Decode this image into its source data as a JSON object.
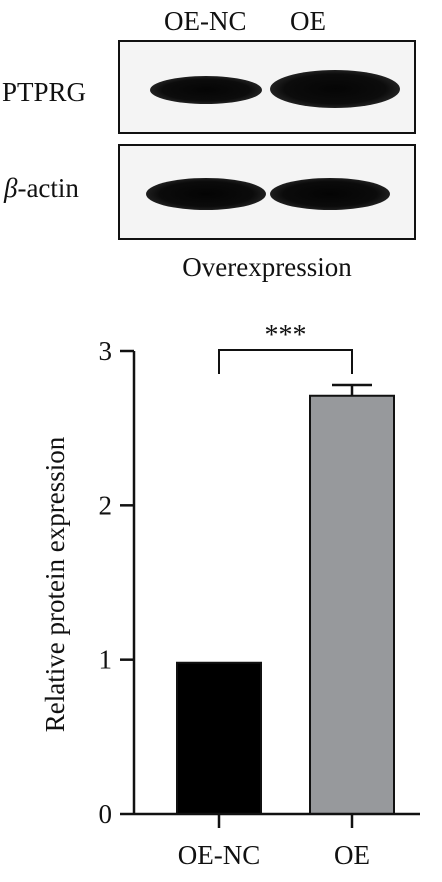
{
  "blot": {
    "lanes": [
      "OE-NC",
      "OE"
    ],
    "rows": [
      {
        "label_symbol": "β",
        "label_text": "PTPRG"
      },
      {
        "label_symbol": "β",
        "label_text": "-actin"
      }
    ],
    "caption": "Overexpression"
  },
  "chart_data": {
    "type": "bar",
    "categories": [
      "OE-NC",
      "OE"
    ],
    "values": [
      0.98,
      2.71
    ],
    "errors": [
      0,
      0.07
    ],
    "ylabel": "Relative protein expression",
    "xlabel": "",
    "ylim": [
      0,
      3
    ],
    "yticks": [
      0,
      1,
      2,
      3
    ],
    "colors": [
      "#000000",
      "#97999c"
    ],
    "significance": "***",
    "grid": false,
    "legend": "none"
  }
}
